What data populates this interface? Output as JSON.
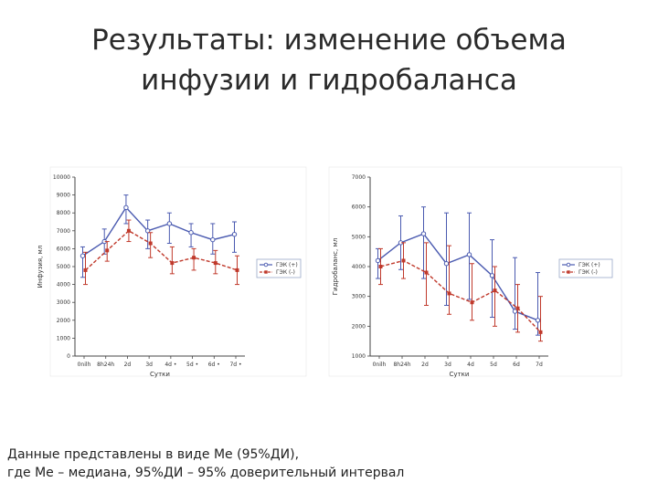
{
  "slide": {
    "title_line1": "Результаты: изменение объема",
    "title_line2": "инфузии и гидробаланса",
    "note_line1": "Данные представлены в виде Ме (95%ДИ),",
    "note_line2": "где Ме – медиана, 95%ДИ – 95% доверительный интервал"
  },
  "colors": {
    "series1": "#4a5ab0",
    "series2": "#c0392b",
    "axis": "#444444",
    "legend_border": "#9aa7c8"
  },
  "chart_data": [
    {
      "type": "line",
      "xlabel": "Сутки",
      "ylabel": "Инфузия, мл",
      "categories": [
        "0nilh",
        "8h24h",
        "2d",
        "3d",
        "4d •",
        "5d •",
        "6d •",
        "7d •"
      ],
      "ylim": [
        0,
        10000
      ],
      "yticks": [
        "0",
        "1000",
        "2000",
        "3000",
        "4000",
        "5000",
        "6000",
        "7000",
        "8000",
        "9000",
        "10000"
      ],
      "series": [
        {
          "name": "ГЭК (+)",
          "values": [
            5600,
            6400,
            8300,
            7000,
            7400,
            6900,
            6500,
            6800
          ],
          "lower": [
            4400,
            5700,
            7400,
            6000,
            6300,
            6100,
            5700,
            5800
          ],
          "upper": [
            6100,
            7100,
            9000,
            7600,
            8000,
            7400,
            7400,
            7500
          ]
        },
        {
          "name": "ГЭК (-)",
          "values": [
            4800,
            5900,
            7000,
            6300,
            5200,
            5500,
            5200,
            4800
          ],
          "lower": [
            4000,
            5300,
            6400,
            5500,
            4600,
            4800,
            4600,
            4000
          ],
          "upper": [
            5800,
            6400,
            7600,
            6900,
            6100,
            6000,
            5900,
            5600
          ]
        }
      ],
      "legend": "right",
      "grid": false
    },
    {
      "type": "line",
      "xlabel": "Сутки",
      "ylabel": "Гидробаланс, мл",
      "categories": [
        "0nilh",
        "8h24h",
        "2d",
        "3d",
        "4d",
        "5d",
        "6d",
        "7d"
      ],
      "ylim": [
        1000,
        7000
      ],
      "yticks": [
        "1000",
        "2000",
        "3000",
        "4000",
        "5000",
        "6000",
        "7000"
      ],
      "series": [
        {
          "name": "ГЭК (+)",
          "values": [
            4200,
            4800,
            5100,
            4100,
            4400,
            3700,
            2500,
            2200
          ],
          "lower": [
            3600,
            3900,
            3600,
            2700,
            2900,
            2300,
            1900,
            1700
          ],
          "upper": [
            4600,
            5700,
            6000,
            5800,
            5800,
            4900,
            4300,
            3800
          ]
        },
        {
          "name": "ГЭК (-)",
          "values": [
            4000,
            4200,
            3800,
            3100,
            2800,
            3200,
            2600,
            1800
          ],
          "lower": [
            3400,
            3600,
            2700,
            2400,
            2200,
            2000,
            1800,
            1500
          ],
          "upper": [
            4600,
            4800,
            4800,
            4700,
            4100,
            4000,
            3400,
            3000
          ]
        }
      ],
      "legend": "right",
      "grid": false
    }
  ]
}
